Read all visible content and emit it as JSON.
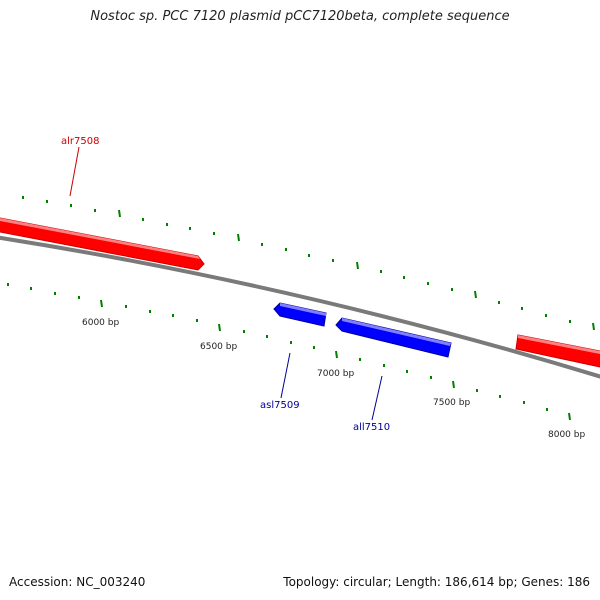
{
  "header": {
    "title": "Nostoc sp. PCC 7120 plasmid pCC7120beta, complete sequence"
  },
  "footer": {
    "accession": "Accession: NC_003240",
    "summary": "Topology: circular; Length: 186,614 bp; Genes: 186"
  },
  "colors": {
    "forward_gene": "#ff0000",
    "reverse_gene": "#0000ff",
    "backbone": "#808080",
    "ticks": "#008000"
  },
  "scale": {
    "labels": [
      "6000 bp",
      "6500 bp",
      "7000 bp",
      "7500 bp",
      "8000 bp"
    ]
  },
  "genes": [
    {
      "name": "alr7508",
      "strand": "forward",
      "color": "#cc0000"
    },
    {
      "name": "asl7509",
      "strand": "reverse",
      "color": "#000099"
    },
    {
      "name": "all7510",
      "strand": "reverse",
      "color": "#000099"
    }
  ]
}
